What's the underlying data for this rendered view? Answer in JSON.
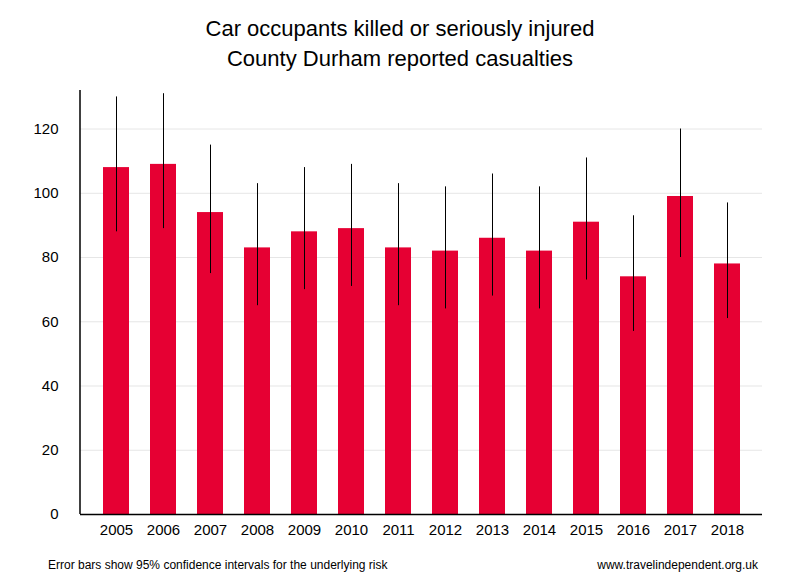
{
  "chart_data": {
    "type": "bar",
    "title": "Car occupants killed or seriously injured",
    "subtitle": "County Durham reported casualties",
    "caption": "Error bars show 95% confidence intervals for the underlying risk",
    "source": "www.travelindependent.org.uk",
    "categories": [
      "2005",
      "2006",
      "2007",
      "2008",
      "2009",
      "2010",
      "2011",
      "2012",
      "2013",
      "2014",
      "2015",
      "2016",
      "2017",
      "2018"
    ],
    "values": [
      108,
      109,
      94,
      83,
      88,
      89,
      83,
      82,
      86,
      82,
      91,
      74,
      99,
      78
    ],
    "ci_low": [
      88,
      89,
      75,
      65,
      70,
      71,
      65,
      64,
      68,
      64,
      73,
      57,
      80,
      61
    ],
    "ci_high": [
      130,
      131,
      115,
      103,
      108,
      109,
      103,
      102,
      106,
      102,
      111,
      93,
      120,
      97
    ],
    "color": "#e60033",
    "ylim": [
      0,
      132
    ],
    "yticks": [
      0,
      20,
      40,
      60,
      80,
      100,
      120
    ],
    "grid": true
  }
}
